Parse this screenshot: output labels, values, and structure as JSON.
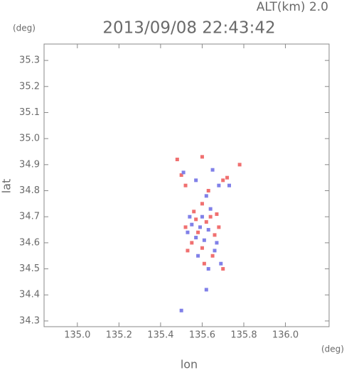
{
  "chart_data": {
    "type": "scatter",
    "title": "2013/09/08 22:43:42",
    "annotation": "ALT(km) 2.0",
    "y_unit": "(deg)",
    "x_unit": "(deg)",
    "x_label": "lon",
    "y_label": "lat",
    "xlim": [
      134.84,
      136.21
    ],
    "ylim": [
      34.278,
      35.363
    ],
    "xticks": [
      {
        "value": 135.0,
        "label": "135.0"
      },
      135.2,
      135.4,
      135.6,
      135.8,
      {
        "value": 136.0,
        "label": "136.0"
      }
    ],
    "yticks": [
      34.3,
      34.4,
      34.5,
      34.6,
      34.7,
      34.8,
      34.9,
      {
        "value": 35.0,
        "label": "35.0"
      },
      35.1,
      35.2,
      35.3
    ],
    "series": [
      {
        "color": "#f07070",
        "x": [
          135.48,
          135.6,
          135.78,
          135.5,
          135.72,
          135.52,
          135.63,
          135.7,
          135.56,
          135.52,
          135.58,
          135.62,
          135.66,
          135.64,
          135.55,
          135.68,
          135.6,
          135.53,
          135.65,
          135.7,
          135.61,
          135.67,
          135.57,
          135.6
        ],
        "y": [
          34.92,
          34.93,
          34.9,
          34.86,
          34.85,
          34.82,
          34.8,
          34.84,
          34.72,
          34.66,
          34.64,
          34.68,
          34.63,
          34.7,
          34.6,
          34.66,
          34.58,
          34.57,
          34.55,
          34.5,
          34.52,
          34.71,
          34.69,
          34.75
        ]
      },
      {
        "color": "#8080e8",
        "x": [
          135.51,
          135.57,
          135.65,
          135.68,
          135.73,
          135.62,
          135.54,
          135.59,
          135.63,
          135.57,
          135.67,
          135.53,
          135.61,
          135.66,
          135.58,
          135.63,
          135.69,
          135.55,
          135.64,
          135.6,
          135.5,
          135.62
        ],
        "y": [
          34.87,
          34.84,
          34.88,
          34.82,
          34.82,
          34.78,
          34.7,
          34.66,
          34.65,
          34.62,
          34.6,
          34.64,
          34.61,
          34.57,
          34.55,
          34.5,
          34.52,
          34.67,
          34.73,
          34.7,
          34.34,
          34.42
        ]
      }
    ]
  }
}
